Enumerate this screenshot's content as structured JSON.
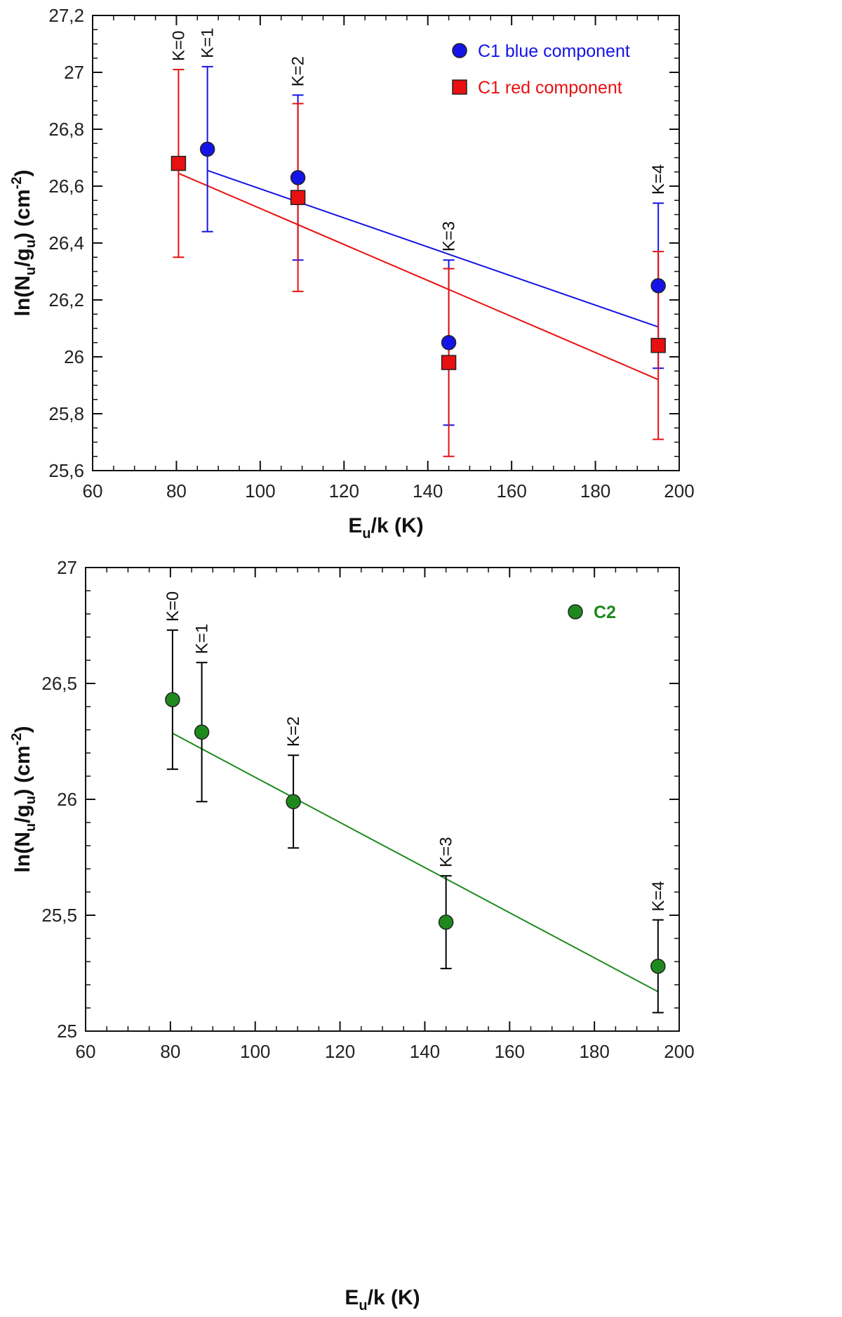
{
  "chart_data": [
    {
      "type": "scatter",
      "id": "top",
      "xlabel": "E_u/k (K)",
      "xlabel_parts": {
        "main": "E",
        "sub": "u",
        "rest": "/k (K)"
      },
      "ylabel": "ln(N_u/g_u) (cm^-2)",
      "ylabel_parts": {
        "a": "ln(N",
        "sub1": "u",
        "b": "/g",
        "sub2": "u",
        "c": ") (cm",
        "sup": "-2",
        "d": ")"
      },
      "xlim": [
        60,
        200
      ],
      "ylim": [
        25.6,
        27.2
      ],
      "xticks": [
        60,
        80,
        100,
        120,
        140,
        160,
        180,
        200
      ],
      "xtick_labels": [
        "60",
        "80",
        "100",
        "120",
        "140",
        "160",
        "180",
        "200"
      ],
      "yticks": [
        25.6,
        25.8,
        26.0,
        26.2,
        26.4,
        26.6,
        26.8,
        27.0,
        27.2
      ],
      "ytick_labels": [
        "25,6",
        "25,8",
        "26",
        "26,2",
        "26,4",
        "26,6",
        "26,8",
        "27",
        "27,2"
      ],
      "x_minor_step": 5,
      "y_minor_step": 0.05,
      "legend_position": "top-right",
      "series": [
        {
          "name": "C1 blue component",
          "color": "#1414e6",
          "marker": "circle",
          "x": [
            87.4,
            109.0,
            145.0,
            195.0
          ],
          "y": [
            26.73,
            26.63,
            26.05,
            26.25
          ],
          "err_low": [
            26.44,
            26.34,
            25.76,
            25.96
          ],
          "err_high": [
            27.02,
            26.92,
            26.34,
            26.54
          ],
          "fit": {
            "x": [
              87.4,
              195.0
            ],
            "y": [
              26.655,
              26.105
            ]
          }
        },
        {
          "name": "C1 red component",
          "color": "#e81010",
          "marker": "square",
          "x": [
            80.5,
            109.0,
            145.0,
            195.0
          ],
          "y": [
            26.68,
            26.56,
            25.98,
            26.04
          ],
          "err_low": [
            26.35,
            26.23,
            25.65,
            25.71
          ],
          "err_high": [
            27.01,
            26.89,
            26.31,
            26.37
          ],
          "fit": {
            "x": [
              80.5,
              195.0
            ],
            "y": [
              26.645,
              25.92
            ]
          }
        }
      ],
      "k_labels": [
        {
          "text": "K=0",
          "x": 80.5,
          "y_top": 27.01
        },
        {
          "text": "K=1",
          "x": 87.4,
          "y_top": 27.02
        },
        {
          "text": "K=2",
          "x": 109.0,
          "y_top": 26.92
        },
        {
          "text": "K=3",
          "x": 145.0,
          "y_top": 26.34
        },
        {
          "text": "K=4",
          "x": 195.0,
          "y_top": 26.54
        }
      ]
    },
    {
      "type": "scatter",
      "id": "bottom",
      "xlabel": "E_u/k (K)",
      "xlabel_parts": {
        "main": "E",
        "sub": "u",
        "rest": "/k (K)"
      },
      "ylabel": "ln(N_u/g_u) (cm^-2)",
      "ylabel_parts": {
        "a": "ln(N",
        "sub1": "u",
        "b": "/g",
        "sub2": "u",
        "c": ") (cm",
        "sup": "-2",
        "d": ")"
      },
      "xlim": [
        60,
        200
      ],
      "ylim": [
        25.0,
        27.0
      ],
      "xticks": [
        60,
        80,
        100,
        120,
        140,
        160,
        180,
        200
      ],
      "xtick_labels": [
        "60",
        "80",
        "100",
        "120",
        "140",
        "160",
        "180",
        "200"
      ],
      "yticks": [
        25.0,
        25.5,
        26.0,
        26.5,
        27.0
      ],
      "ytick_labels": [
        "25",
        "25,5",
        "26",
        "26,5",
        "27"
      ],
      "x_minor_step": 5,
      "y_minor_step": 0.1,
      "legend_position": "top-right",
      "series": [
        {
          "name": "C2",
          "color": "#1e8a1e",
          "marker": "circle",
          "errcolor": "#000000",
          "x": [
            80.5,
            87.4,
            109.0,
            145.0,
            195.0
          ],
          "y": [
            26.43,
            26.29,
            25.99,
            25.47,
            25.28
          ],
          "err_low": [
            26.13,
            25.99,
            25.79,
            25.27,
            25.08
          ],
          "err_high": [
            26.73,
            26.59,
            26.19,
            25.67,
            25.48
          ],
          "fit": {
            "x": [
              80.5,
              195.0
            ],
            "y": [
              26.285,
              25.17
            ]
          }
        }
      ],
      "k_labels": [
        {
          "text": "K=0",
          "x": 80.5,
          "y_top": 26.73
        },
        {
          "text": "K=1",
          "x": 87.4,
          "y_top": 26.59
        },
        {
          "text": "K=2",
          "x": 109.0,
          "y_top": 26.19
        },
        {
          "text": "K=3",
          "x": 145.0,
          "y_top": 25.67
        },
        {
          "text": "K=4",
          "x": 195.0,
          "y_top": 25.48
        }
      ]
    }
  ]
}
